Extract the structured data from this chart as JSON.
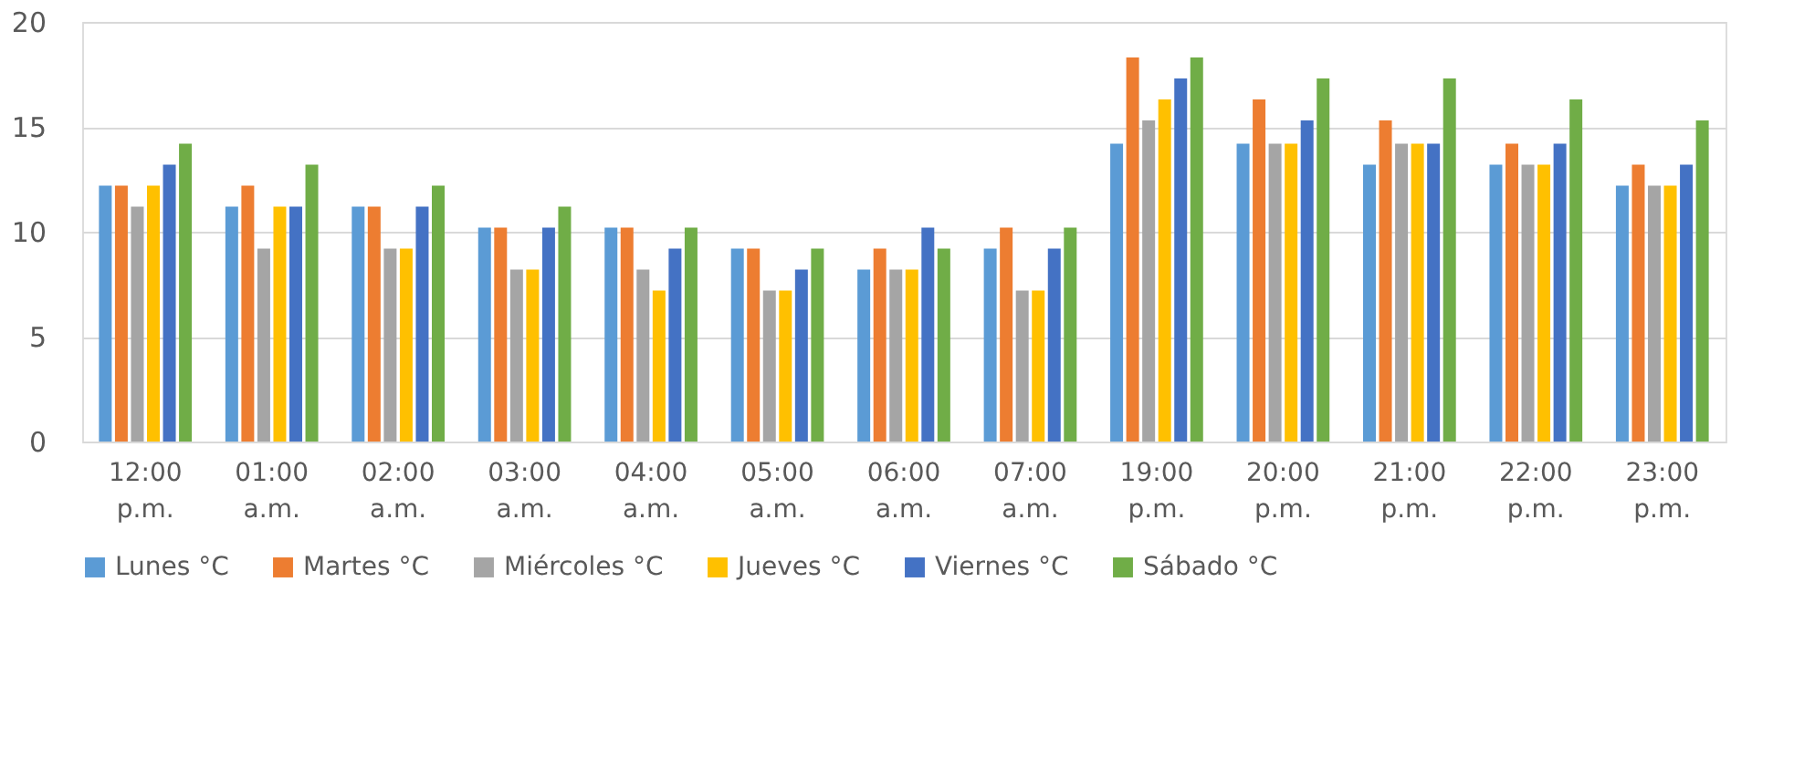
{
  "chart_data": {
    "type": "bar",
    "categories": [
      "12:00 p.m.",
      "01:00 a.m.",
      "02:00 a.m.",
      "03:00 a.m.",
      "04:00 a.m.",
      "05:00 a.m.",
      "06:00 a.m.",
      "07:00 a.m.",
      "19:00 p.m.",
      "20:00 p.m.",
      "21:00 p.m.",
      "22:00 p.m.",
      "23:00 p.m."
    ],
    "series": [
      {
        "name": "Lunes °C",
        "color": "#5b9bd5",
        "values": [
          12.2,
          11.2,
          11.2,
          10.2,
          10.2,
          9.2,
          8.2,
          9.2,
          14.2,
          14.2,
          13.2,
          13.2,
          12.2
        ]
      },
      {
        "name": "Martes °C",
        "color": "#ed7d31",
        "values": [
          12.2,
          12.2,
          11.2,
          10.2,
          10.2,
          9.2,
          9.2,
          10.2,
          18.3,
          16.3,
          15.3,
          14.2,
          13.2
        ]
      },
      {
        "name": "Miércoles °C",
        "color": "#a5a5a5",
        "values": [
          11.2,
          9.2,
          9.2,
          8.2,
          8.2,
          7.2,
          8.2,
          7.2,
          15.3,
          14.2,
          14.2,
          13.2,
          12.2
        ]
      },
      {
        "name": "Jueves °C",
        "color": "#ffc000",
        "values": [
          12.2,
          11.2,
          9.2,
          8.2,
          7.2,
          7.2,
          8.2,
          7.2,
          16.3,
          14.2,
          14.2,
          13.2,
          12.2
        ]
      },
      {
        "name": "Viernes °C",
        "color": "#4472c4",
        "values": [
          13.2,
          11.2,
          11.2,
          10.2,
          9.2,
          8.2,
          10.2,
          9.2,
          17.3,
          15.3,
          14.2,
          14.2,
          13.2
        ]
      },
      {
        "name": "Sábado °C",
        "color": "#70ad47",
        "values": [
          14.2,
          13.2,
          12.2,
          11.2,
          10.2,
          9.2,
          9.2,
          10.2,
          18.3,
          17.3,
          17.3,
          16.3,
          15.3
        ]
      }
    ],
    "ylim": [
      0,
      20
    ],
    "yticks": [
      0,
      5,
      10,
      15,
      20
    ],
    "grid": "y",
    "legend": "bottom"
  }
}
